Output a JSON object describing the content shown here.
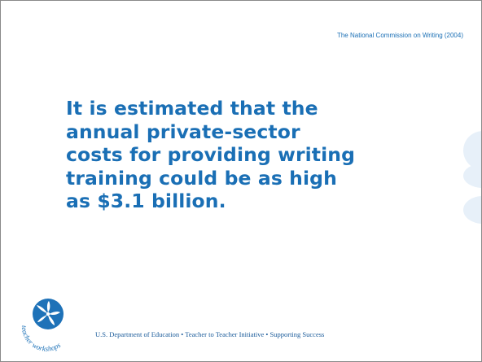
{
  "slide": {
    "citation": "The National Commission on Writing (2004)",
    "main_text_lines": [
      "It is estimated that the",
      "annual private-sector",
      "costs for providing writing",
      "training could be as high",
      "as $3.1 billion."
    ],
    "logo_text": "teacher workshops",
    "footer": "U.S. Department of Education • Teacher to Teacher Initiative • Supporting Success"
  },
  "colors": {
    "text_blue": "#1a6fb5",
    "deco_circle": "#e7f0f9",
    "logo_blue": "#1e72b8",
    "border": "#8a8a8a"
  }
}
